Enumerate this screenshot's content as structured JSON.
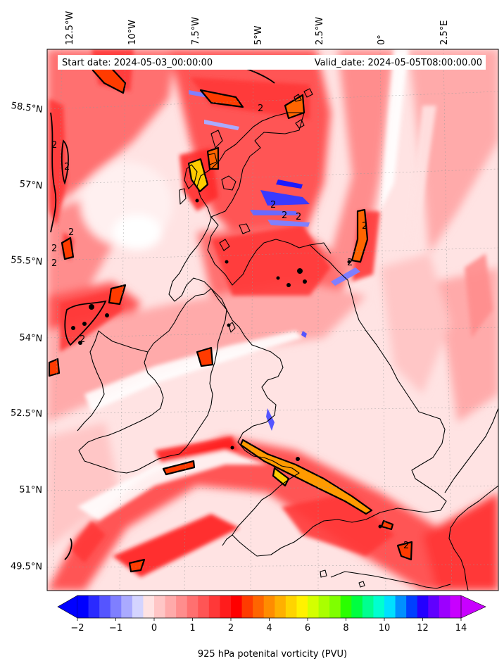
{
  "map": {
    "start_label": "Start date: 2024-05-03_00:00:00",
    "valid_label": "Valid_date: 2024-05-05T08:00:00.00",
    "lon_labels": [
      "12.5°W",
      "10°W",
      "7.5°W",
      "5°W",
      "2.5°W",
      "0°",
      "2.5°E"
    ],
    "lat_labels": [
      "58.5°N",
      "57°N",
      "55.5°N",
      "54°N",
      "52.5°N",
      "51°N",
      "49.5°N"
    ],
    "contour_label": "2",
    "colors": {
      "background": "#ffe3e3",
      "strong": "#ff2a2a",
      "medium": "#ff7070",
      "light": "#ffb2b2",
      "negative": "#3a3aff",
      "high": "#ff9a00",
      "coast": "#000000"
    }
  },
  "colorbar": {
    "label": "925 hPa potenital vorticity (PVU)",
    "tick_labels": [
      "−2",
      "−1",
      "0",
      "1",
      "2",
      "4",
      "6",
      "8",
      "10",
      "12",
      "14"
    ],
    "colors": [
      "#0000ff",
      "#2a2aff",
      "#5555ff",
      "#7f7fff",
      "#aaaaff",
      "#d4d4ff",
      "#ffe3e3",
      "#ffc6c6",
      "#ffaaaa",
      "#ff8d8d",
      "#ff7070",
      "#ff5555",
      "#ff3838",
      "#ff1c1c",
      "#ff0000",
      "#ff3b00",
      "#ff6500",
      "#ff8c00",
      "#ffb000",
      "#ffd400",
      "#fff200",
      "#d4ff00",
      "#aaff00",
      "#7fff00",
      "#2aff00",
      "#00ff40",
      "#00ff90",
      "#00ffd0",
      "#00e0ff",
      "#0090ff",
      "#0040ff",
      "#2400ff",
      "#6000ff",
      "#9c00ff",
      "#c800ff"
    ]
  }
}
